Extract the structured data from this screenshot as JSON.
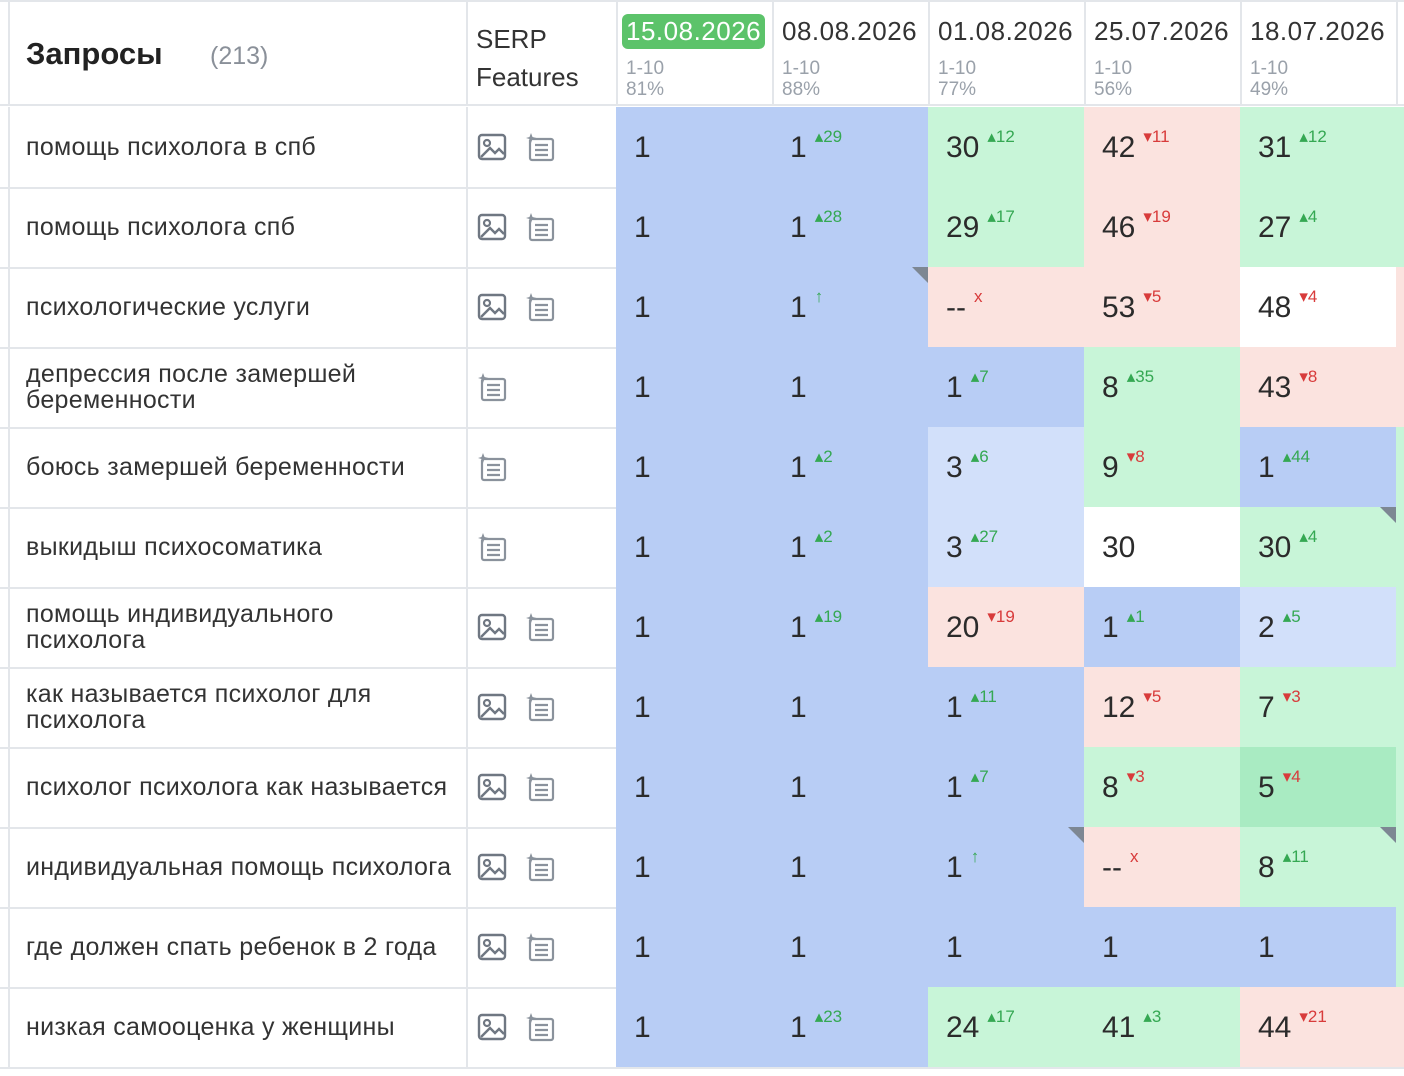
{
  "header": {
    "title": "Запросы",
    "count": "(213)",
    "serp_label": "SERP Features",
    "dates": [
      {
        "date": "15.08.2026",
        "range": "1-10",
        "pct": "81%",
        "active": true
      },
      {
        "date": "08.08.2026",
        "range": "1-10",
        "pct": "88%",
        "active": false
      },
      {
        "date": "01.08.2026",
        "range": "1-10",
        "pct": "77%",
        "active": false
      },
      {
        "date": "25.07.2026",
        "range": "1-10",
        "pct": "56%",
        "active": false
      },
      {
        "date": "18.07.2026",
        "range": "1-10",
        "pct": "49%",
        "active": false
      }
    ]
  },
  "colors": {
    "blue": "#b8cdf5",
    "light_blue": "#d2e0fa",
    "green": "#c8f5d8",
    "dark_green": "#a9ebc2",
    "pink": "#fbe3df",
    "white": "#ffffff",
    "active_date": "#5cc36a"
  },
  "rows": [
    {
      "query": "помощь психолога в спб",
      "serp": [
        "image-icon",
        "list-icon"
      ],
      "cells": [
        {
          "v": "1",
          "c": "blue"
        },
        {
          "v": "1",
          "d": "29",
          "dir": "up",
          "c": "blue"
        },
        {
          "v": "30",
          "d": "12",
          "dir": "up",
          "c": "green"
        },
        {
          "v": "42",
          "d": "11",
          "dir": "down",
          "c": "pink"
        },
        {
          "v": "31",
          "d": "12",
          "dir": "up",
          "c": "green"
        }
      ]
    },
    {
      "query": "помощь психолога спб",
      "serp": [
        "image-icon",
        "list-icon"
      ],
      "cells": [
        {
          "v": "1",
          "c": "blue"
        },
        {
          "v": "1",
          "d": "28",
          "dir": "up",
          "c": "blue"
        },
        {
          "v": "29",
          "d": "17",
          "dir": "up",
          "c": "green"
        },
        {
          "v": "46",
          "d": "19",
          "dir": "down",
          "c": "pink"
        },
        {
          "v": "27",
          "d": "4",
          "dir": "up",
          "c": "green"
        }
      ]
    },
    {
      "query": "психологические услуги",
      "serp": [
        "image-icon",
        "list-icon"
      ],
      "cells": [
        {
          "v": "1",
          "c": "blue"
        },
        {
          "v": "1",
          "d": "↑",
          "dir": "up",
          "c": "blue",
          "corner": true
        },
        {
          "v": "--",
          "d": "x",
          "dir": "down",
          "c": "pink"
        },
        {
          "v": "53",
          "d": "5",
          "dir": "down",
          "c": "pink"
        },
        {
          "v": "48",
          "d": "4",
          "dir": "down",
          "c": "white"
        }
      ]
    },
    {
      "query": "депрессия после замершей беременности",
      "serp": [
        "list-icon"
      ],
      "cells": [
        {
          "v": "1",
          "c": "blue"
        },
        {
          "v": "1",
          "c": "blue"
        },
        {
          "v": "1",
          "d": "7",
          "dir": "up",
          "c": "blue"
        },
        {
          "v": "8",
          "d": "35",
          "dir": "up",
          "c": "green"
        },
        {
          "v": "43",
          "d": "8",
          "dir": "down",
          "c": "pink"
        }
      ]
    },
    {
      "query": "боюсь замершей беременности",
      "serp": [
        "list-icon"
      ],
      "cells": [
        {
          "v": "1",
          "c": "blue"
        },
        {
          "v": "1",
          "d": "2",
          "dir": "up",
          "c": "blue"
        },
        {
          "v": "3",
          "d": "6",
          "dir": "up",
          "c": "lblue"
        },
        {
          "v": "9",
          "d": "8",
          "dir": "down",
          "c": "green"
        },
        {
          "v": "1",
          "d": "44",
          "dir": "up",
          "c": "blue"
        }
      ]
    },
    {
      "query": "выкидыш психосоматика",
      "serp": [
        "list-icon"
      ],
      "cells": [
        {
          "v": "1",
          "c": "blue"
        },
        {
          "v": "1",
          "d": "2",
          "dir": "up",
          "c": "blue"
        },
        {
          "v": "3",
          "d": "27",
          "dir": "up",
          "c": "lblue"
        },
        {
          "v": "30",
          "c": "white"
        },
        {
          "v": "30",
          "d": "4",
          "dir": "up",
          "c": "green",
          "corner": true
        }
      ]
    },
    {
      "query": "помощь индивидуального психолога",
      "serp": [
        "image-icon",
        "list-icon"
      ],
      "cells": [
        {
          "v": "1",
          "c": "blue"
        },
        {
          "v": "1",
          "d": "19",
          "dir": "up",
          "c": "blue"
        },
        {
          "v": "20",
          "d": "19",
          "dir": "down",
          "c": "pink"
        },
        {
          "v": "1",
          "d": "1",
          "dir": "up",
          "c": "blue"
        },
        {
          "v": "2",
          "d": "5",
          "dir": "up",
          "c": "lblue"
        }
      ]
    },
    {
      "query": "как называется психолог для психолога",
      "serp": [
        "image-icon",
        "list-icon"
      ],
      "cells": [
        {
          "v": "1",
          "c": "blue"
        },
        {
          "v": "1",
          "c": "blue"
        },
        {
          "v": "1",
          "d": "11",
          "dir": "up",
          "c": "blue"
        },
        {
          "v": "12",
          "d": "5",
          "dir": "down",
          "c": "pink"
        },
        {
          "v": "7",
          "d": "3",
          "dir": "down",
          "c": "green"
        }
      ]
    },
    {
      "query": "психолог психолога как называется",
      "serp": [
        "image-icon",
        "list-icon"
      ],
      "cells": [
        {
          "v": "1",
          "c": "blue"
        },
        {
          "v": "1",
          "c": "blue"
        },
        {
          "v": "1",
          "d": "7",
          "dir": "up",
          "c": "blue"
        },
        {
          "v": "8",
          "d": "3",
          "dir": "down",
          "c": "green"
        },
        {
          "v": "5",
          "d": "4",
          "dir": "down",
          "c": "dgreen"
        }
      ]
    },
    {
      "query": "индивидуальная помощь психолога",
      "serp": [
        "image-icon",
        "list-icon"
      ],
      "cells": [
        {
          "v": "1",
          "c": "blue"
        },
        {
          "v": "1",
          "c": "blue"
        },
        {
          "v": "1",
          "d": "↑",
          "dir": "up",
          "c": "blue",
          "corner": true
        },
        {
          "v": "--",
          "d": "x",
          "dir": "down",
          "c": "pink"
        },
        {
          "v": "8",
          "d": "11",
          "dir": "up",
          "c": "green",
          "corner": true
        }
      ]
    },
    {
      "query": "где должен спать ребенок в 2 года",
      "serp": [
        "image-icon",
        "list-icon"
      ],
      "cells": [
        {
          "v": "1",
          "c": "blue"
        },
        {
          "v": "1",
          "c": "blue"
        },
        {
          "v": "1",
          "c": "blue"
        },
        {
          "v": "1",
          "c": "blue"
        },
        {
          "v": "1",
          "c": "blue"
        }
      ]
    },
    {
      "query": "низкая самооценка у женщины",
      "serp": [
        "image-icon",
        "list-icon"
      ],
      "cells": [
        {
          "v": "1",
          "c": "blue"
        },
        {
          "v": "1",
          "d": "23",
          "dir": "up",
          "c": "blue"
        },
        {
          "v": "24",
          "d": "17",
          "dir": "up",
          "c": "green"
        },
        {
          "v": "41",
          "d": "3",
          "dir": "up",
          "c": "green"
        },
        {
          "v": "44",
          "d": "21",
          "dir": "down",
          "c": "pink"
        }
      ]
    }
  ]
}
